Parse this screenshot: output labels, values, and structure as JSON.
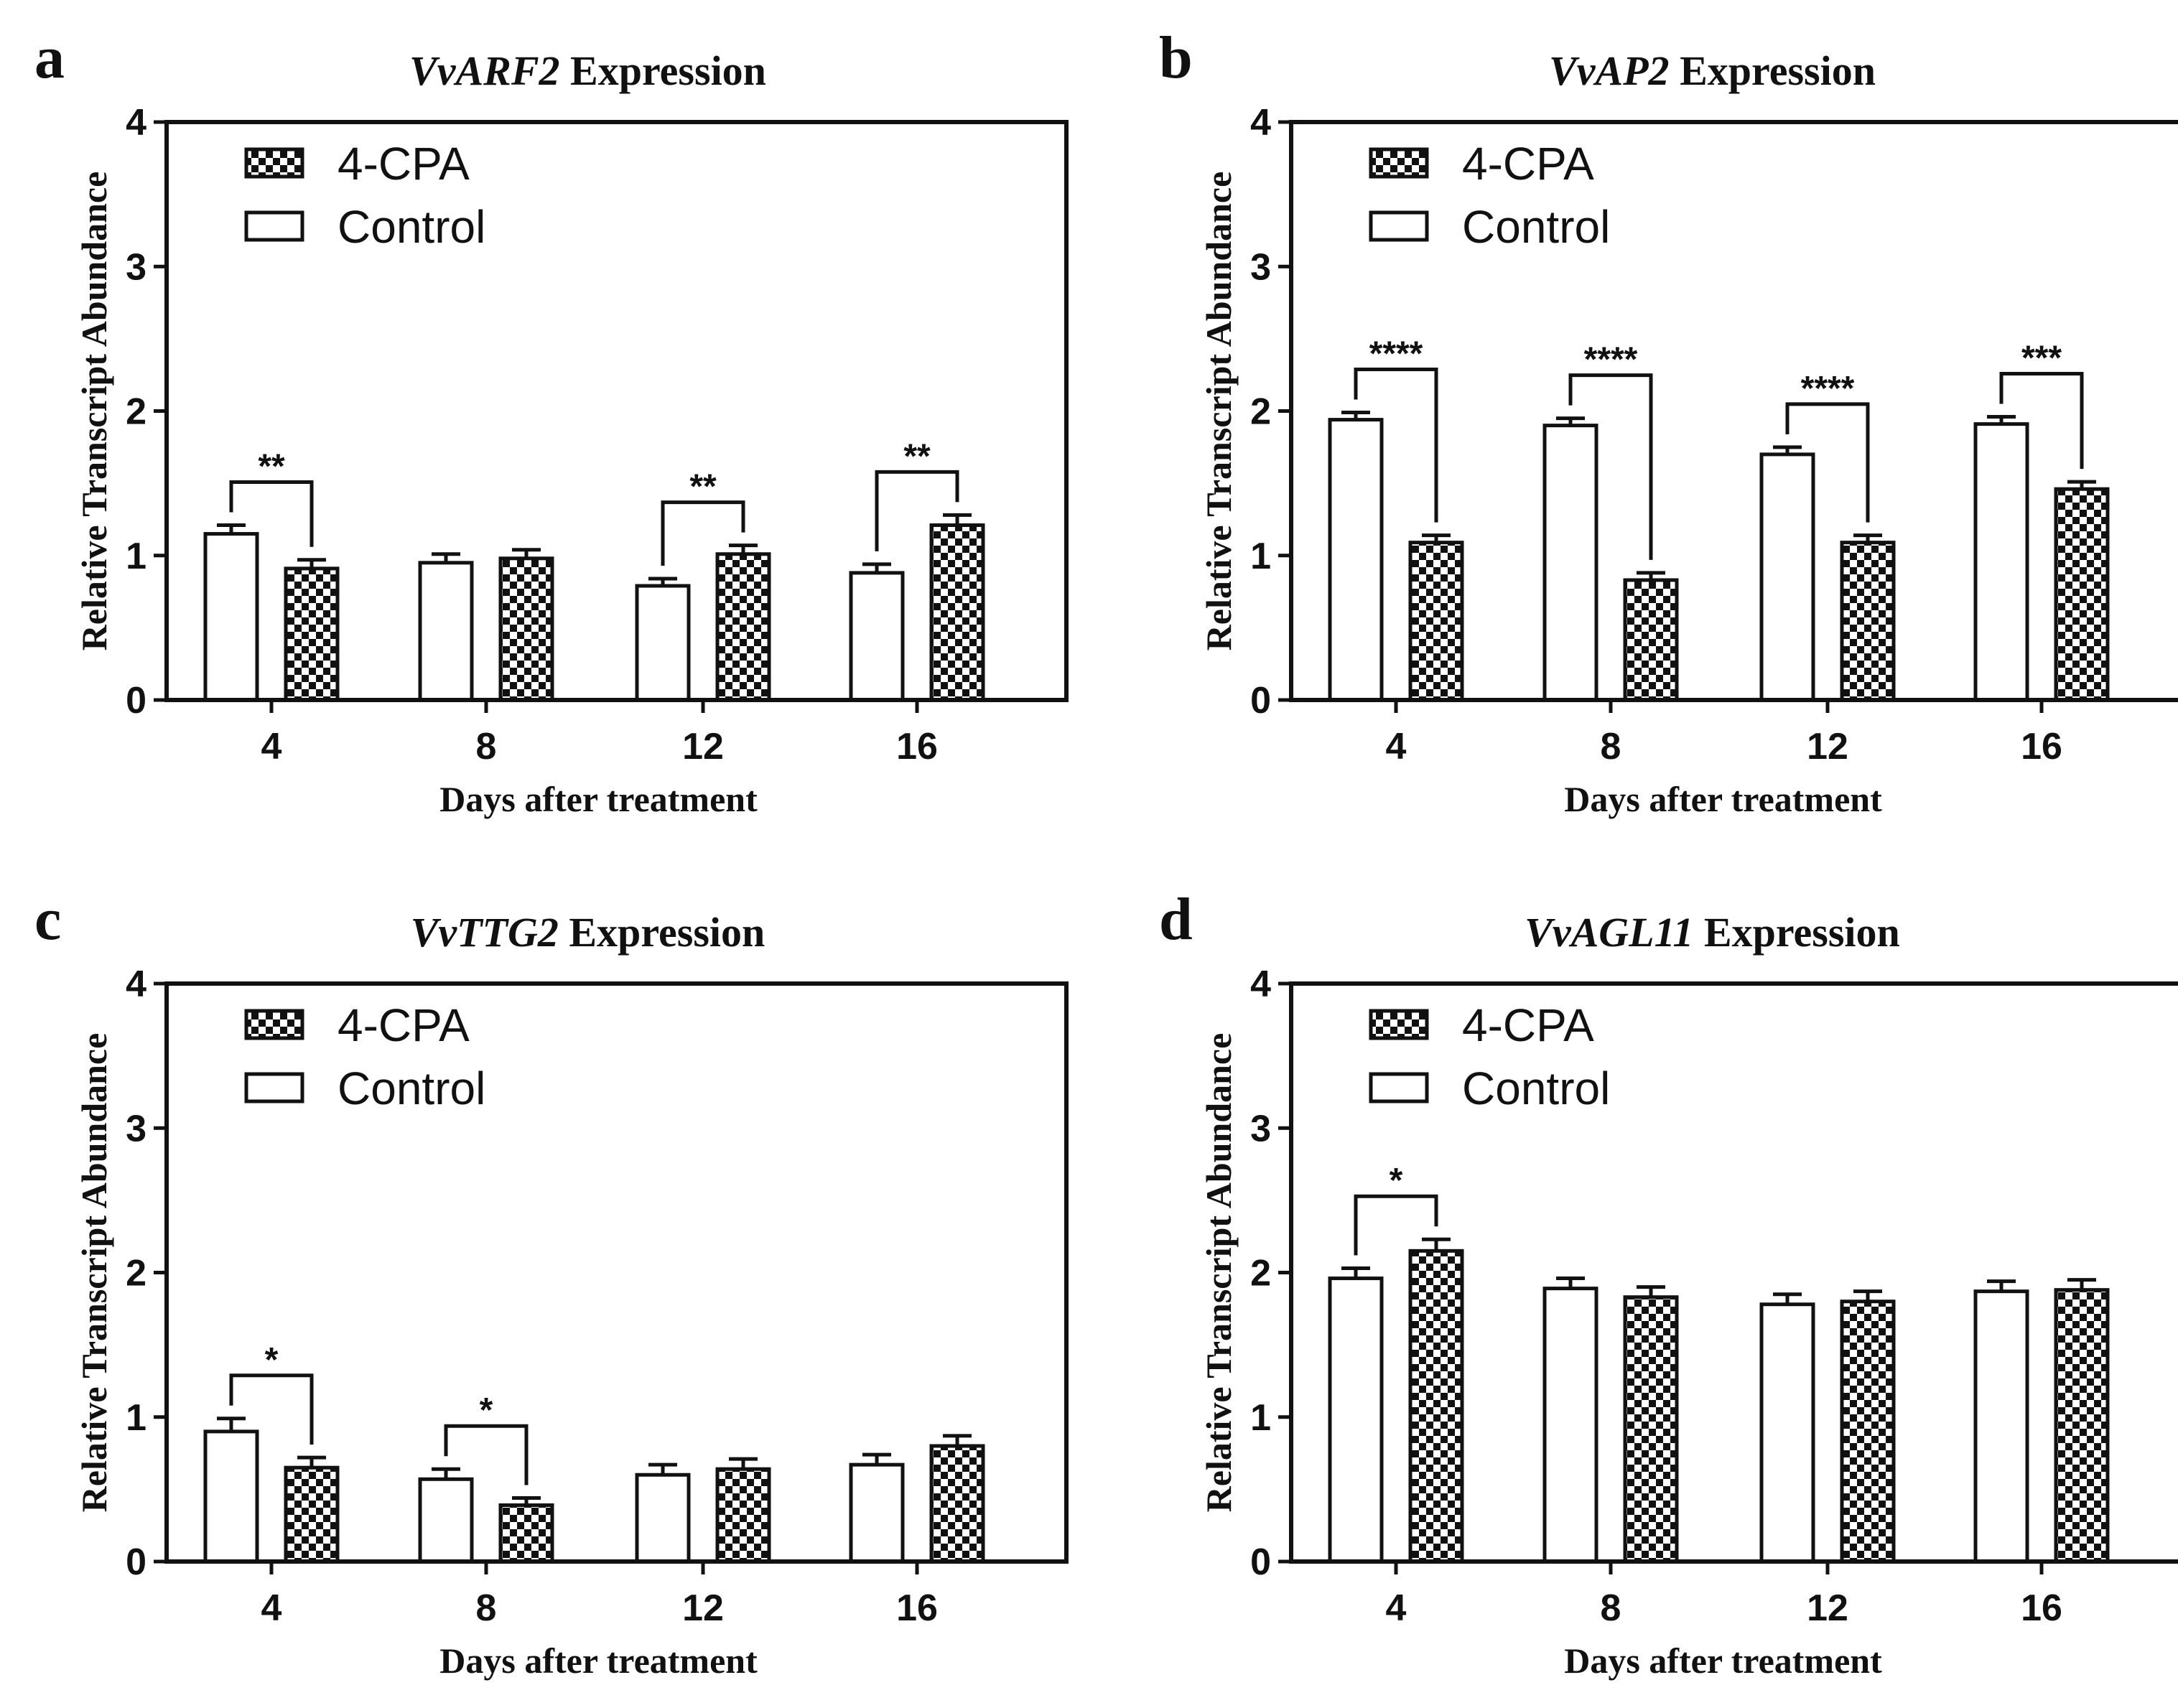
{
  "chart_data": [
    {
      "panel": "a",
      "type": "bar",
      "title": "VvARF2 Expression",
      "title_gene": "VvARF2",
      "title_suffix": " Expression",
      "xlabel": "Days after treatment",
      "ylabel": "Relative Transcript Abundance",
      "ylim": [
        0,
        4
      ],
      "yticks": [
        "0",
        "1",
        "2",
        "3",
        "4"
      ],
      "categories": [
        "4",
        "8",
        "12",
        "16"
      ],
      "legend": [
        "4-CPA",
        "Control"
      ],
      "series": [
        {
          "name": "Control",
          "values": [
            1.15,
            0.95,
            0.79,
            0.88
          ],
          "errors": [
            0.06,
            0.06,
            0.05,
            0.06
          ]
        },
        {
          "name": "4-CPA",
          "values": [
            0.91,
            0.98,
            1.01,
            1.21
          ],
          "errors": [
            0.06,
            0.06,
            0.06,
            0.07
          ]
        }
      ],
      "significance": [
        "**",
        "",
        "**",
        "**"
      ]
    },
    {
      "panel": "b",
      "type": "bar",
      "title": "VvAP2 Expression",
      "title_gene": "VvAP2",
      "title_suffix": " Expression",
      "xlabel": "Days after treatment",
      "ylabel": "Relative Transcript Abundance",
      "ylim": [
        0,
        4
      ],
      "yticks": [
        "0",
        "1",
        "2",
        "3",
        "4"
      ],
      "categories": [
        "4",
        "8",
        "12",
        "16"
      ],
      "legend": [
        "4-CPA",
        "Control"
      ],
      "series": [
        {
          "name": "Control",
          "values": [
            1.94,
            1.9,
            1.7,
            1.91
          ],
          "errors": [
            0.05,
            0.05,
            0.05,
            0.05
          ]
        },
        {
          "name": "4-CPA",
          "values": [
            1.09,
            0.83,
            1.09,
            1.46
          ],
          "errors": [
            0.05,
            0.05,
            0.05,
            0.05
          ]
        }
      ],
      "significance": [
        "****",
        "****",
        "****",
        "***"
      ]
    },
    {
      "panel": "c",
      "type": "bar",
      "title": "VvTTG2 Expression",
      "title_gene": "VvTTG2",
      "title_suffix": " Expression",
      "xlabel": "Days after treatment",
      "ylabel": "Relative Transcript Abundance",
      "ylim": [
        0,
        4
      ],
      "yticks": [
        "0",
        "1",
        "2",
        "3",
        "4"
      ],
      "categories": [
        "4",
        "8",
        "12",
        "16"
      ],
      "legend": [
        "4-CPA",
        "Control"
      ],
      "series": [
        {
          "name": "Control",
          "values": [
            0.9,
            0.57,
            0.6,
            0.67
          ],
          "errors": [
            0.09,
            0.07,
            0.07,
            0.07
          ]
        },
        {
          "name": "4-CPA",
          "values": [
            0.65,
            0.39,
            0.64,
            0.8
          ],
          "errors": [
            0.07,
            0.05,
            0.07,
            0.07
          ]
        }
      ],
      "significance": [
        "*",
        "*",
        "",
        ""
      ]
    },
    {
      "panel": "d",
      "type": "bar",
      "title": "VvAGL11 Expression",
      "title_gene": "VvAGL11",
      "title_suffix": " Expression",
      "xlabel": "Days after treatment",
      "ylabel": "Relative Transcript Abundance",
      "ylim": [
        0,
        4
      ],
      "yticks": [
        "0",
        "1",
        "2",
        "3",
        "4"
      ],
      "categories": [
        "4",
        "8",
        "12",
        "16"
      ],
      "legend": [
        "4-CPA",
        "Control"
      ],
      "series": [
        {
          "name": "Control",
          "values": [
            1.96,
            1.89,
            1.78,
            1.87
          ],
          "errors": [
            0.07,
            0.07,
            0.07,
            0.07
          ]
        },
        {
          "name": "4-CPA",
          "values": [
            2.15,
            1.83,
            1.8,
            1.88
          ],
          "errors": [
            0.08,
            0.07,
            0.07,
            0.07
          ]
        }
      ],
      "significance": [
        "*",
        "",
        "",
        ""
      ]
    }
  ]
}
